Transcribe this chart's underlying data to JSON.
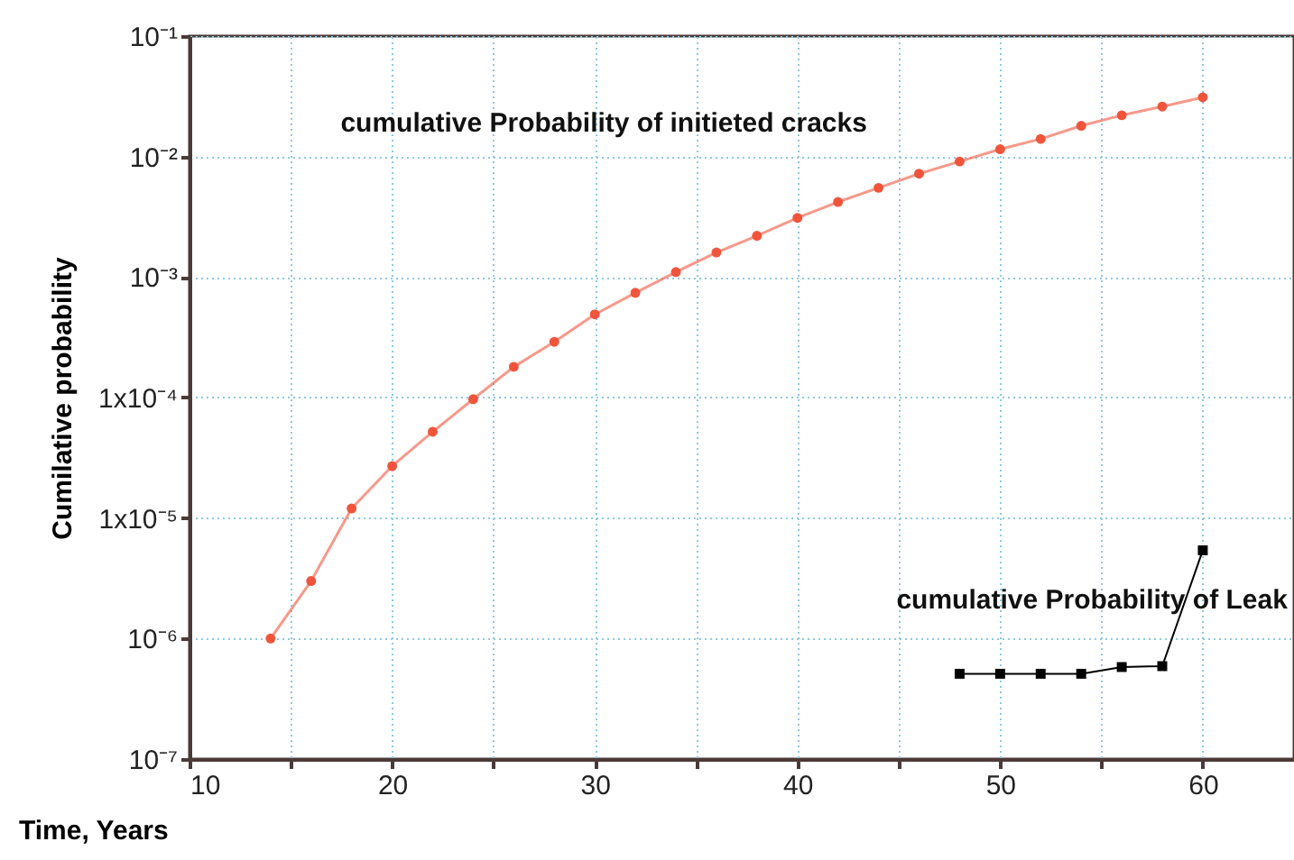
{
  "chart_data": {
    "type": "line",
    "xlabel": "Time, Years",
    "ylabel": "Cumilative probability",
    "log": "y",
    "grid": true,
    "xlim": [
      10,
      64.5
    ],
    "xticks": [
      10,
      {
        "value": 15,
        "label": null
      },
      20,
      {
        "value": 25,
        "label": null
      },
      30,
      {
        "value": 35,
        "label": null
      },
      40,
      {
        "value": 45,
        "label": null
      },
      50,
      {
        "value": 55,
        "label": null
      },
      60
    ],
    "ylim": [
      1e-07,
      0.1
    ],
    "yticks": [
      {
        "value": 1e-07,
        "label": "10⁻⁷"
      },
      {
        "value": 1e-06,
        "label": "10⁻⁶"
      },
      {
        "value": 1e-05,
        "label": "1x10⁻⁵"
      },
      {
        "value": 0.0001,
        "label": "1x10⁻⁴"
      },
      {
        "value": 0.001,
        "label": "10⁻³"
      },
      {
        "value": 0.01,
        "label": "10⁻²"
      },
      {
        "value": 0.1,
        "label": "10⁻¹"
      }
    ],
    "series": [
      {
        "name": "cumulative Probability of initieted cracks",
        "color": "#f0553c",
        "marker": "circle",
        "x": [
          14,
          16,
          18,
          20,
          22,
          24,
          26,
          28,
          30,
          32,
          34,
          36,
          38,
          40,
          42,
          44,
          46,
          48,
          50,
          52,
          54,
          56,
          58,
          60
        ],
        "values": [
          1e-06,
          3e-06,
          1.2e-05,
          2.7e-05,
          5.2e-05,
          9.7e-05,
          0.00018,
          0.00029,
          0.00049,
          0.00074,
          0.0011,
          0.0016,
          0.0022,
          0.0031,
          0.0042,
          0.0055,
          0.0072,
          0.0091,
          0.0115,
          0.014,
          0.018,
          0.022,
          0.026,
          0.031
        ]
      },
      {
        "name": "cumulative Probability of Leak",
        "color": "#000000",
        "marker": "square",
        "x": [
          48,
          50,
          52,
          54,
          56,
          58,
          60
        ],
        "values": [
          5.1e-07,
          5.1e-07,
          5.1e-07,
          5.1e-07,
          5.8e-07,
          5.9e-07,
          5.4e-06
        ]
      }
    ]
  }
}
